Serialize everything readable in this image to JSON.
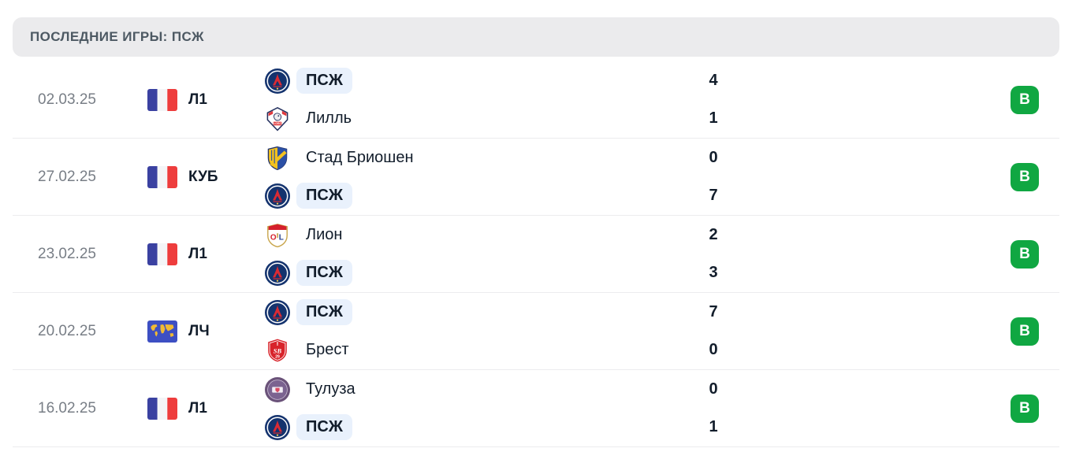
{
  "section": {
    "title": "ПОСЛЕДНИЕ ИГРЫ: ПСЖ"
  },
  "colors": {
    "win_badge": "#10A742",
    "highlight_pill": "#E9F1FC",
    "header_bg": "#EBEBED"
  },
  "matches": [
    {
      "date": "02.03.25",
      "competition": {
        "label": "Л1",
        "icon": "france-flag-icon"
      },
      "teams": [
        {
          "name": "ПСЖ",
          "logo_icon": "psg-logo",
          "highlighted": true,
          "score": "4"
        },
        {
          "name": "Лилль",
          "logo_icon": "lille-logo",
          "highlighted": false,
          "score": "1"
        }
      ],
      "result": {
        "label": "В",
        "type": "win"
      }
    },
    {
      "date": "27.02.25",
      "competition": {
        "label": "КУБ",
        "icon": "france-flag-icon"
      },
      "teams": [
        {
          "name": "Стад Бриошен",
          "logo_icon": "briochin-logo",
          "highlighted": false,
          "score": "0"
        },
        {
          "name": "ПСЖ",
          "logo_icon": "psg-logo",
          "highlighted": true,
          "score": "7"
        }
      ],
      "result": {
        "label": "В",
        "type": "win"
      }
    },
    {
      "date": "23.02.25",
      "competition": {
        "label": "Л1",
        "icon": "france-flag-icon"
      },
      "teams": [
        {
          "name": "Лион",
          "logo_icon": "lyon-logo",
          "highlighted": false,
          "score": "2"
        },
        {
          "name": "ПСЖ",
          "logo_icon": "psg-logo",
          "highlighted": true,
          "score": "3"
        }
      ],
      "result": {
        "label": "В",
        "type": "win"
      }
    },
    {
      "date": "20.02.25",
      "competition": {
        "label": "ЛЧ",
        "icon": "world-map-icon"
      },
      "teams": [
        {
          "name": "ПСЖ",
          "logo_icon": "psg-logo",
          "highlighted": true,
          "score": "7"
        },
        {
          "name": "Брест",
          "logo_icon": "brest-logo",
          "highlighted": false,
          "score": "0"
        }
      ],
      "result": {
        "label": "В",
        "type": "win"
      }
    },
    {
      "date": "16.02.25",
      "competition": {
        "label": "Л1",
        "icon": "france-flag-icon"
      },
      "teams": [
        {
          "name": "Тулуза",
          "logo_icon": "toulouse-logo",
          "highlighted": false,
          "score": "0"
        },
        {
          "name": "ПСЖ",
          "logo_icon": "psg-logo",
          "highlighted": true,
          "score": "1"
        }
      ],
      "result": {
        "label": "В",
        "type": "win"
      }
    }
  ]
}
